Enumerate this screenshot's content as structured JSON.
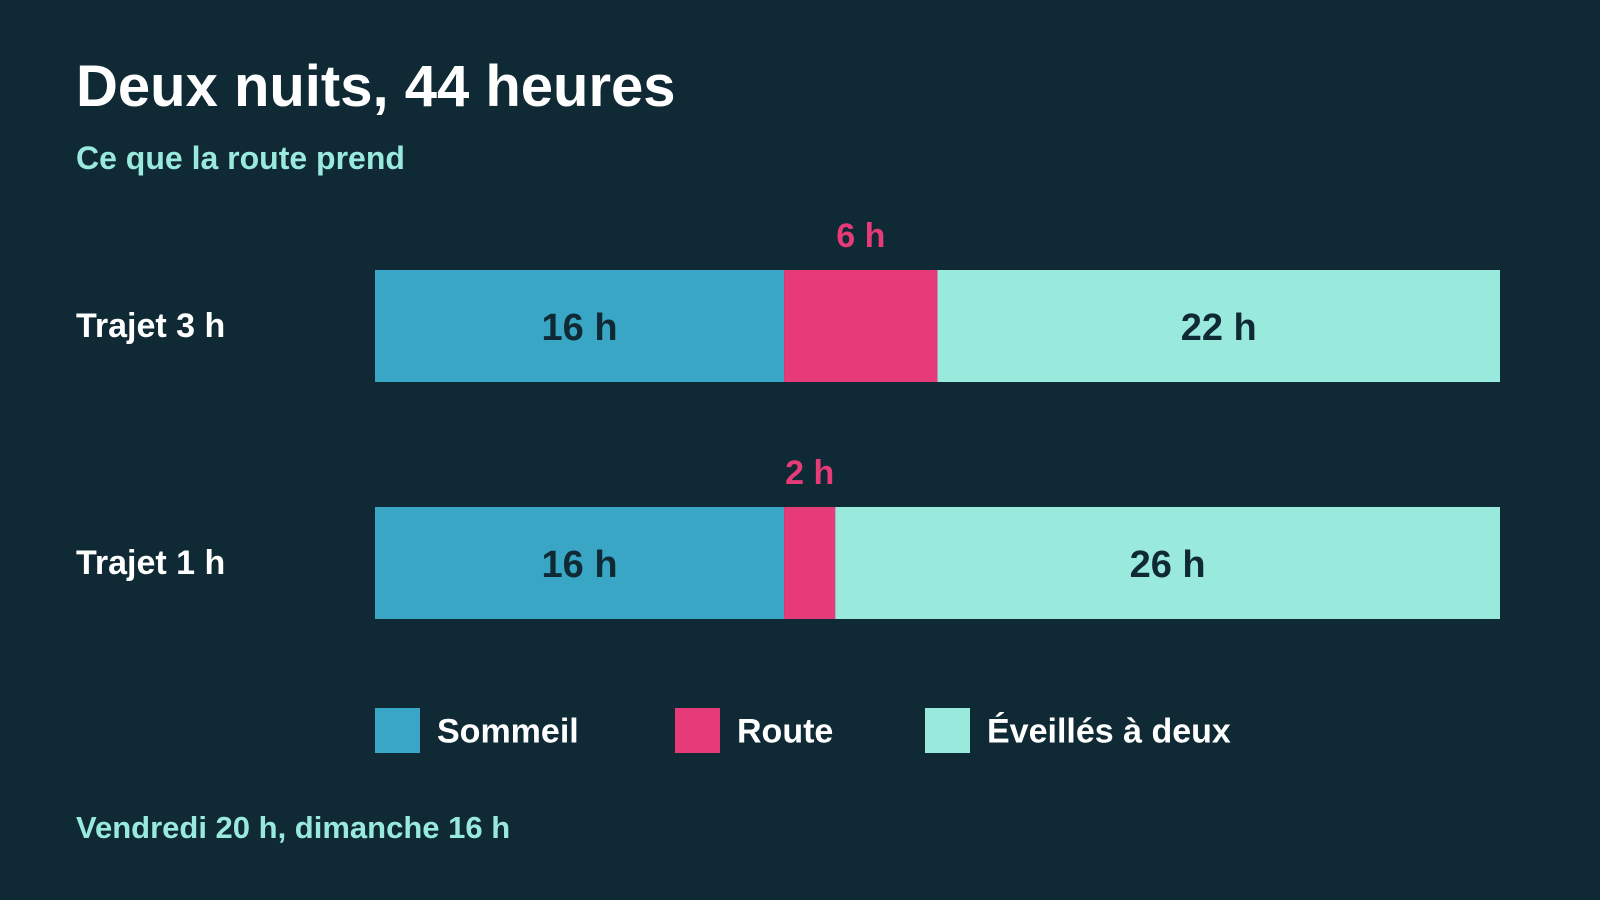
{
  "colors": {
    "background": "#0f2a35",
    "accent": "#9ae9dd",
    "sleep": "#38a6c4",
    "road": "#e73a78",
    "awake": "#9ae9dd"
  },
  "header": {
    "title": "Deux nuits, 44 heures",
    "subtitle": "Ce que la route prend"
  },
  "footer": {
    "note": "Vendredi 20 h, dimanche 16 h"
  },
  "chart_data": {
    "type": "bar",
    "orientation": "horizontal",
    "stacked": true,
    "title": "Deux nuits, 44 heures",
    "subtitle": "Ce que la route prend",
    "unit": "h",
    "categories": [
      "Trajet 3 h",
      "Trajet 1 h"
    ],
    "series": [
      {
        "name": "Sommeil",
        "values": [
          16,
          16
        ],
        "value_labels": [
          "16 h",
          "16 h"
        ],
        "color": "#38a6c4"
      },
      {
        "name": "Route",
        "values": [
          6,
          2
        ],
        "value_labels": [
          "6 h",
          "2 h"
        ],
        "color": "#e73a78"
      },
      {
        "name": "Éveillés à deux",
        "values": [
          22,
          26
        ],
        "value_labels": [
          "22 h",
          "26 h"
        ],
        "color": "#9ae9dd"
      }
    ],
    "xlim": [
      0,
      44
    ],
    "grid": false,
    "legend": "bottom"
  }
}
